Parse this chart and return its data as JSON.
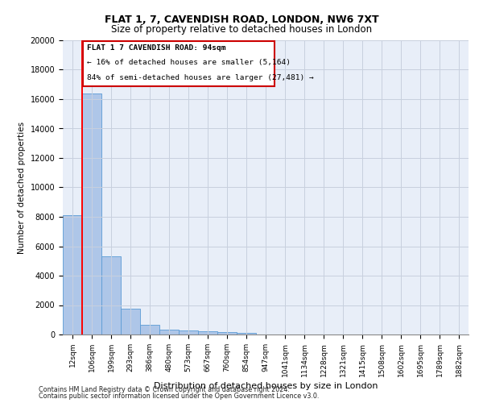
{
  "title": "FLAT 1, 7, CAVENDISH ROAD, LONDON, NW6 7XT",
  "subtitle": "Size of property relative to detached houses in London",
  "xlabel": "Distribution of detached houses by size in London",
  "ylabel": "Number of detached properties",
  "categories": [
    "12sqm",
    "106sqm",
    "199sqm",
    "293sqm",
    "386sqm",
    "480sqm",
    "573sqm",
    "667sqm",
    "760sqm",
    "854sqm",
    "947sqm",
    "1041sqm",
    "1134sqm",
    "1228sqm",
    "1321sqm",
    "1415sqm",
    "1508sqm",
    "1602sqm",
    "1695sqm",
    "1789sqm",
    "1882sqm"
  ],
  "bar_heights": [
    8100,
    16400,
    5300,
    1750,
    650,
    350,
    275,
    225,
    175,
    100,
    0,
    0,
    0,
    0,
    0,
    0,
    0,
    0,
    0,
    0,
    0
  ],
  "bar_color": "#aec6e8",
  "bar_edge_color": "#5b9bd5",
  "background_color": "#ffffff",
  "plot_bg_color": "#e8eef8",
  "grid_color": "#c8d0de",
  "annotation_text_line1": "FLAT 1 7 CAVENDISH ROAD: 94sqm",
  "annotation_text_line2": "← 16% of detached houses are smaller (5,164)",
  "annotation_text_line3": "84% of semi-detached houses are larger (27,481) →",
  "annotation_box_color": "#cc0000",
  "ylim": [
    0,
    20000
  ],
  "yticks": [
    0,
    2000,
    4000,
    6000,
    8000,
    10000,
    12000,
    14000,
    16000,
    18000,
    20000
  ],
  "footer_line1": "Contains HM Land Registry data © Crown copyright and database right 2024.",
  "footer_line2": "Contains public sector information licensed under the Open Government Licence v3.0."
}
